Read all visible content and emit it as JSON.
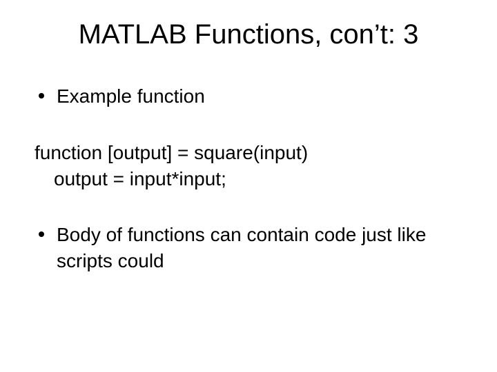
{
  "slide": {
    "title": "MATLAB Functions, con’t: 3",
    "bullet1": "Example function",
    "code_line1": "function [output] = square(input)",
    "code_line2": "output = input*input;",
    "bullet2": "Body of functions can contain code just like scripts could",
    "background_color": "#ffffff",
    "text_color": "#000000",
    "title_fontsize": 40,
    "body_fontsize": 28,
    "font_family": "Arial"
  }
}
